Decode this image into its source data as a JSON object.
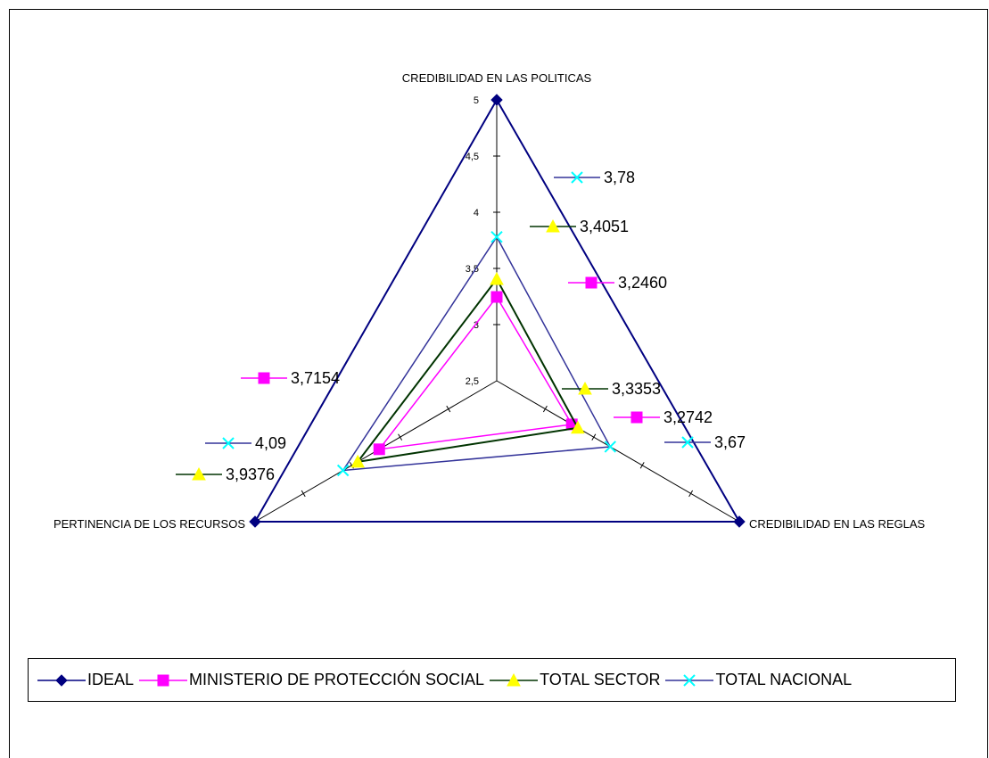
{
  "chart_data": {
    "type": "radar",
    "axes": [
      "CREDIBILIDAD EN LAS POLITICAS",
      "CREDIBILIDAD EN LAS REGLAS",
      "PERTINENCIA DE LOS RECURSOS"
    ],
    "rlim": [
      2.5,
      5
    ],
    "ticks": [
      "2,5",
      "3",
      "3,5",
      "4",
      "4,5",
      "5"
    ],
    "tick_values": [
      2.5,
      3,
      3.5,
      4,
      4.5,
      5
    ],
    "series": [
      {
        "name": "IDEAL",
        "values": [
          5,
          5,
          5
        ],
        "color": "#000080",
        "marker": "diamond",
        "labels": [
          "",
          "",
          ""
        ]
      },
      {
        "name": "MINISTERIO DE PROTECCIÓN SOCIAL",
        "values": [
          3.246,
          3.2742,
          3.7154
        ],
        "color": "#FF00FF",
        "marker": "square",
        "labels": [
          "3,2460",
          "3,2742",
          "3,7154"
        ]
      },
      {
        "name": "TOTAL SECTOR",
        "values": [
          3.4051,
          3.3353,
          3.9376
        ],
        "color": "#003300",
        "marker": "triangle",
        "labels": [
          "3,4051",
          "3,3353",
          "3,9376"
        ]
      },
      {
        "name": "TOTAL NACIONAL",
        "values": [
          3.78,
          3.67,
          4.09
        ],
        "color": "#333399",
        "marker": "x",
        "labels": [
          "3,78",
          "3,67",
          "4,09"
        ]
      }
    ],
    "legend_position": "bottom"
  }
}
